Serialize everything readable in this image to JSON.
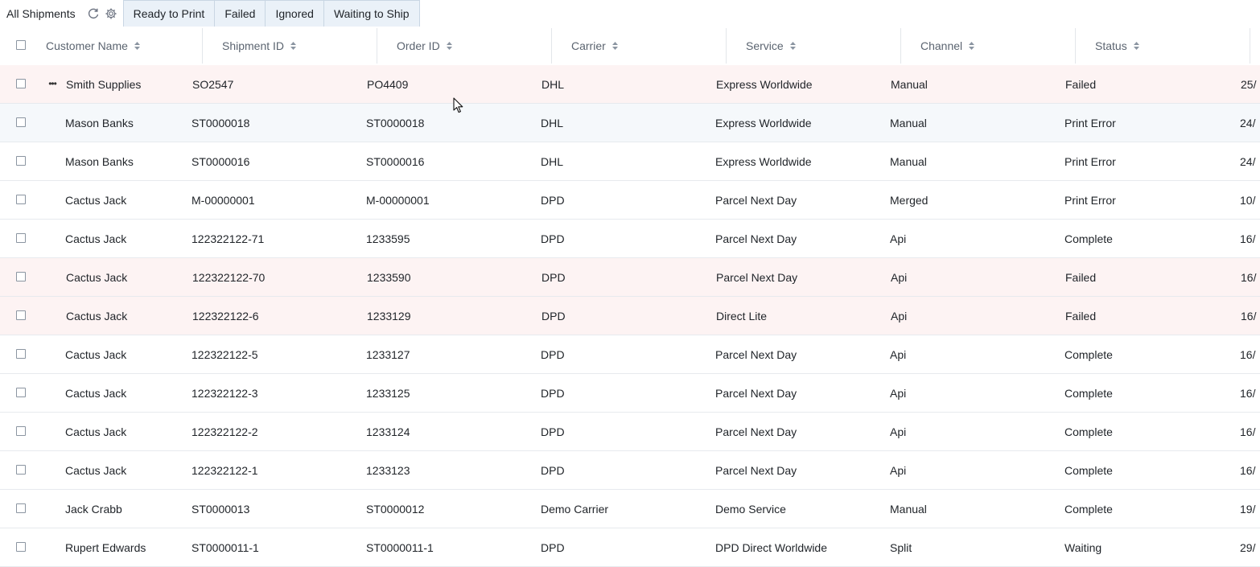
{
  "tabs": {
    "main_label": "All Shipments",
    "items": [
      "Ready to Print",
      "Failed",
      "Ignored",
      "Waiting to Ship"
    ]
  },
  "columns": [
    "Customer Name",
    "Shipment ID",
    "Order ID",
    "Carrier",
    "Service",
    "Channel",
    "Status"
  ],
  "rows": [
    {
      "customer": "Smith Supplies",
      "shipment": "SO2547",
      "order": "PO4409",
      "carrier": "DHL",
      "service": "Express Worldwide",
      "channel": "Manual",
      "status": "Failed",
      "date": "25/",
      "state": "failed"
    },
    {
      "customer": "Mason Banks",
      "shipment": "ST0000018",
      "order": "ST0000018",
      "carrier": "DHL",
      "service": "Express Worldwide",
      "channel": "Manual",
      "status": "Print Error",
      "date": "24/",
      "state": "hover"
    },
    {
      "customer": "Mason Banks",
      "shipment": "ST0000016",
      "order": "ST0000016",
      "carrier": "DHL",
      "service": "Express Worldwide",
      "channel": "Manual",
      "status": "Print Error",
      "date": "24/",
      "state": ""
    },
    {
      "customer": "Cactus Jack",
      "shipment": "M-00000001",
      "order": "M-00000001",
      "carrier": "DPD",
      "service": "Parcel Next Day",
      "channel": "Merged",
      "status": "Print Error",
      "date": "10/",
      "state": ""
    },
    {
      "customer": "Cactus Jack",
      "shipment": "122322122-71",
      "order": "1233595",
      "carrier": "DPD",
      "service": "Parcel Next Day",
      "channel": "Api",
      "status": "Complete",
      "date": "16/",
      "state": ""
    },
    {
      "customer": "Cactus Jack",
      "shipment": "122322122-70",
      "order": "1233590",
      "carrier": "DPD",
      "service": "Parcel Next Day",
      "channel": "Api",
      "status": "Failed",
      "date": "16/",
      "state": "failed"
    },
    {
      "customer": "Cactus Jack",
      "shipment": "122322122-6",
      "order": "1233129",
      "carrier": "DPD",
      "service": "Direct Lite",
      "channel": "Api",
      "status": "Failed",
      "date": "16/",
      "state": "failed"
    },
    {
      "customer": "Cactus Jack",
      "shipment": "122322122-5",
      "order": "1233127",
      "carrier": "DPD",
      "service": "Parcel Next Day",
      "channel": "Api",
      "status": "Complete",
      "date": "16/",
      "state": ""
    },
    {
      "customer": "Cactus Jack",
      "shipment": "122322122-3",
      "order": "1233125",
      "carrier": "DPD",
      "service": "Parcel Next Day",
      "channel": "Api",
      "status": "Complete",
      "date": "16/",
      "state": ""
    },
    {
      "customer": "Cactus Jack",
      "shipment": "122322122-2",
      "order": "1233124",
      "carrier": "DPD",
      "service": "Parcel Next Day",
      "channel": "Api",
      "status": "Complete",
      "date": "16/",
      "state": ""
    },
    {
      "customer": "Cactus Jack",
      "shipment": "122322122-1",
      "order": "1233123",
      "carrier": "DPD",
      "service": "Parcel Next Day",
      "channel": "Api",
      "status": "Complete",
      "date": "16/",
      "state": ""
    },
    {
      "customer": "Jack Crabb",
      "shipment": "ST0000013",
      "order": "ST0000012",
      "carrier": "Demo Carrier",
      "service": "Demo Service",
      "channel": "Manual",
      "status": "Complete",
      "date": "19/",
      "state": ""
    },
    {
      "customer": "Rupert Edwards",
      "shipment": "ST0000011-1",
      "order": "ST0000011-1",
      "carrier": "DPD",
      "service": "DPD Direct Worldwide",
      "channel": "Split",
      "status": "Waiting",
      "date": "29/",
      "state": ""
    }
  ],
  "colors": {
    "failed_row": "#fdf3f3",
    "hover_row": "#f5f8fb",
    "tab_bg": "#eaf1f8"
  },
  "icons": {
    "refresh": "refresh-icon",
    "settings": "gear-icon",
    "sort": "sort-icon",
    "more": "more-horizontal-icon"
  }
}
